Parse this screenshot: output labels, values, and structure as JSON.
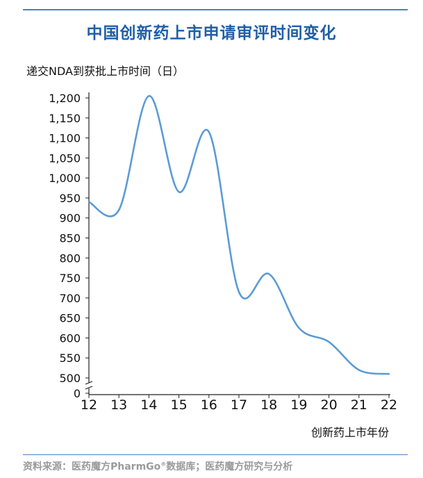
{
  "page": {
    "title": "中国创新药上市申请审评时间变化",
    "source_prefix": "资料来源：医药魔方PharmGo",
    "source_reg": "®",
    "source_suffix": "数据库；医药魔方研究与分析"
  },
  "colors": {
    "line": "#5b9bd5",
    "title": "#1f5fa6",
    "rule": "#4a7fc1",
    "source": "#9a9a9a"
  },
  "chart_data": {
    "type": "line",
    "ylabel": "递交NDA到获批上市时间（日）",
    "xlabel": "创新药上市年份",
    "categories": [
      "12",
      "13",
      "14",
      "15",
      "16",
      "17",
      "18",
      "19",
      "20",
      "21",
      "22"
    ],
    "series": [
      {
        "values": [
          940,
          920,
          1205,
          965,
          1115,
          715,
          760,
          625,
          590,
          520,
          510
        ]
      }
    ],
    "ylim": [
      500,
      1200
    ],
    "ytick_labels": [
      "1,200",
      "1,150",
      "1,100",
      "1,050",
      "1,000",
      "950",
      "900",
      "850",
      "800",
      "750",
      "700",
      "650",
      "600",
      "550",
      "500",
      "0"
    ],
    "axis_break": true,
    "grid": false,
    "legend": "none"
  }
}
